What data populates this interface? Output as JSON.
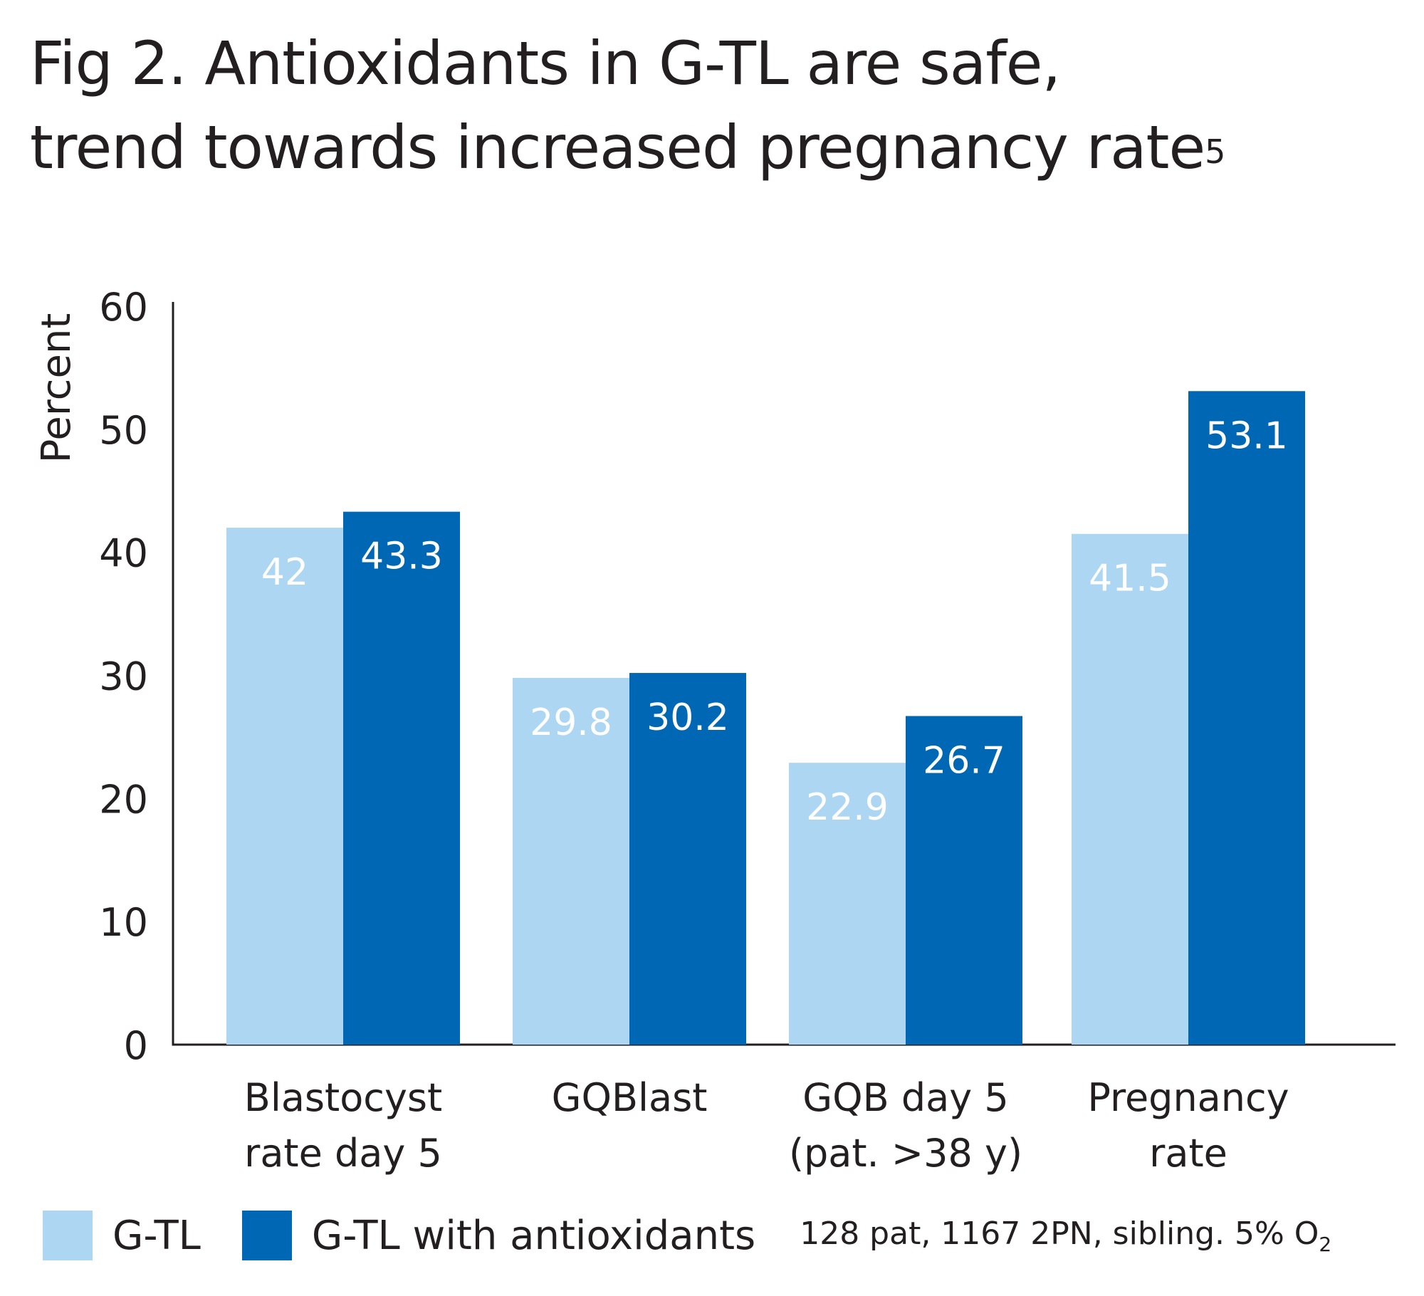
{
  "title_line1": "Fig 2. Antioxidants in G-TL are safe,",
  "title_line2": "trend towards increased pregnancy rate",
  "title_sup": "5",
  "colors": {
    "gtl": "#acd6f2",
    "gtl_antiox": "#0067b4",
    "axis": "#231f20",
    "text": "#231f20"
  },
  "chart_data": {
    "type": "bar",
    "ylabel": "Percent",
    "ylim": [
      0,
      60
    ],
    "yticks": [
      "0",
      "10",
      "20",
      "30",
      "40",
      "50",
      "60"
    ],
    "categories": [
      [
        "Blastocyst",
        "rate day 5"
      ],
      [
        "GQBlast"
      ],
      [
        "GQB day 5",
        "(pat. >38 y)"
      ],
      [
        "Pregnancy",
        "rate"
      ]
    ],
    "series": [
      {
        "name": "G-TL",
        "values": [
          42,
          29.8,
          22.9,
          41.5
        ],
        "labels": [
          "42",
          "29.8",
          "22.9",
          "41.5"
        ]
      },
      {
        "name": "G-TL with antioxidants",
        "values": [
          43.3,
          30.2,
          26.7,
          53.1
        ],
        "labels": [
          "43.3",
          "30.2",
          "26.7",
          "53.1"
        ]
      }
    ]
  },
  "note_main": "128 pat, 1167 2PN, sibling. 5% O",
  "note_sub": "2"
}
